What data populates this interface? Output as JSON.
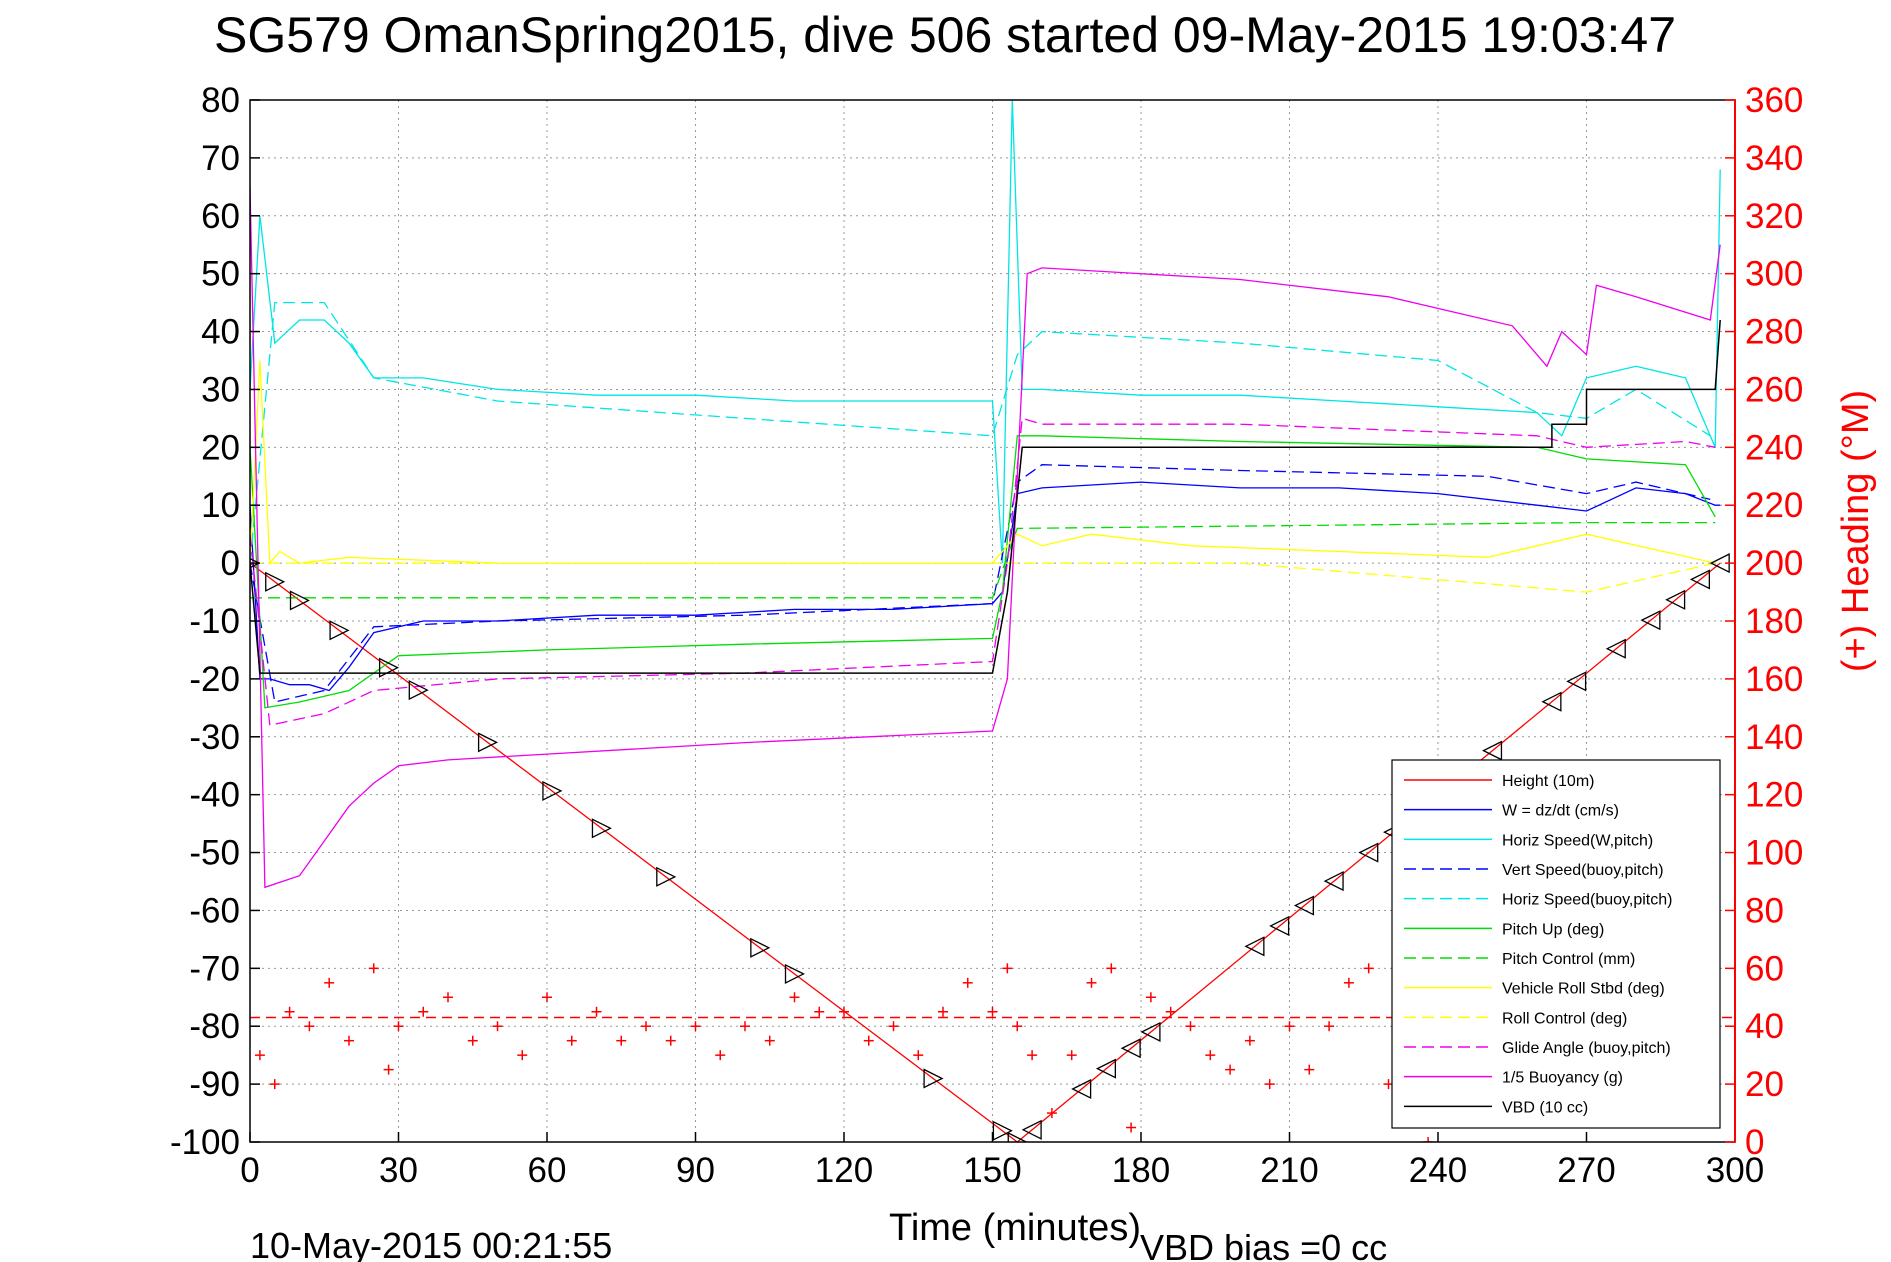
{
  "chart_data": {
    "type": "line",
    "title": "SG579 OmanSpring2015, dive 506 started 09-May-2015 19:03:47",
    "xlabel": "Time (minutes)",
    "ylabel": "",
    "y2label": "(+) Heading (°M)",
    "xlim": [
      0,
      300
    ],
    "ylim": [
      -100,
      80
    ],
    "y2lim": [
      0,
      360
    ],
    "xticks": [
      "0",
      "30",
      "60",
      "90",
      "120",
      "150",
      "180",
      "210",
      "240",
      "270",
      "300"
    ],
    "yticks": [
      "80",
      "70",
      "60",
      "50",
      "40",
      "30",
      "20",
      "10",
      "0",
      "-10",
      "-20",
      "-30",
      "-40",
      "-50",
      "-60",
      "-70",
      "-80",
      "-90",
      "-100"
    ],
    "y2ticks": [
      "360",
      "340",
      "320",
      "300",
      "280",
      "260",
      "240",
      "220",
      "200",
      "180",
      "160",
      "140",
      "120",
      "100",
      "80",
      "60",
      "40",
      "20",
      "0"
    ],
    "grid": true,
    "legend_position": "bottom-right",
    "footer_left": "10-May-2015 00:21:55",
    "footer_right": "VBD bias =0 cc",
    "series": [
      {
        "name": "Height (10m)",
        "color": "#ff0000",
        "style": "solid",
        "x": [
          0,
          155,
          297
        ],
        "y": [
          0,
          -100,
          0
        ]
      },
      {
        "name": "W = dz/dt (cm/s)",
        "color": "#0000ff",
        "style": "solid",
        "x": [
          0,
          2,
          4,
          8,
          12,
          16,
          20,
          25,
          35,
          50,
          70,
          90,
          110,
          130,
          150,
          152,
          155,
          160,
          180,
          200,
          220,
          240,
          260,
          270,
          280,
          290,
          296,
          297
        ],
        "y": [
          10,
          -20,
          -20,
          -21,
          -21,
          -22,
          -18,
          -12,
          -10,
          -10,
          -9,
          -9,
          -8,
          -8,
          -7,
          -5,
          12,
          13,
          14,
          13,
          13,
          12,
          10,
          9,
          13,
          12,
          10,
          10
        ]
      },
      {
        "name": "Horiz Speed(W,pitch)",
        "color": "#00e5e5",
        "style": "solid",
        "x": [
          0,
          2,
          5,
          10,
          15,
          20,
          25,
          35,
          50,
          70,
          90,
          110,
          130,
          150,
          152,
          154,
          156,
          160,
          180,
          200,
          220,
          240,
          260,
          265,
          270,
          280,
          290,
          296,
          297
        ],
        "y": [
          30,
          60,
          38,
          42,
          42,
          38,
          32,
          32,
          30,
          29,
          29,
          28,
          28,
          28,
          0,
          80,
          30,
          30,
          29,
          29,
          28,
          27,
          26,
          22,
          32,
          34,
          32,
          20,
          68
        ]
      },
      {
        "name": "Vert Speed(buoy,pitch)",
        "color": "#0000ff",
        "style": "dashed",
        "x": [
          0,
          5,
          15,
          25,
          50,
          100,
          150,
          155,
          160,
          200,
          250,
          270,
          280,
          295
        ],
        "y": [
          0,
          -24,
          -22,
          -11,
          -10,
          -9,
          -7,
          14,
          17,
          16,
          15,
          12,
          14,
          11
        ]
      },
      {
        "name": "Horiz Speed(buoy,pitch)",
        "color": "#00e5e5",
        "style": "dashed",
        "x": [
          0,
          5,
          15,
          25,
          50,
          100,
          150,
          155,
          160,
          200,
          240,
          260,
          270,
          280,
          295
        ],
        "y": [
          0,
          45,
          45,
          32,
          28,
          25,
          22,
          36,
          40,
          38,
          35,
          26,
          25,
          30,
          22
        ]
      },
      {
        "name": "Pitch Up (deg)",
        "color": "#00dd00",
        "style": "solid",
        "x": [
          0,
          3,
          10,
          20,
          30,
          60,
          100,
          150,
          152,
          155,
          160,
          200,
          260,
          270,
          290,
          296
        ],
        "y": [
          20,
          -25,
          -24,
          -22,
          -16,
          -15,
          -14,
          -13,
          -5,
          22,
          22,
          21,
          20,
          18,
          17,
          8
        ]
      },
      {
        "name": "Pitch Control (mm)",
        "color": "#00dd00",
        "style": "dashed",
        "x": [
          0,
          10,
          150,
          155,
          270,
          296
        ],
        "y": [
          -6,
          -6,
          -6,
          6,
          7,
          7
        ]
      },
      {
        "name": "Vehicle Roll Stbd (deg)",
        "color": "#ffff00",
        "style": "solid",
        "x": [
          0,
          2,
          4,
          6,
          10,
          20,
          50,
          100,
          150,
          155,
          160,
          170,
          190,
          220,
          250,
          270,
          296
        ],
        "y": [
          0,
          35,
          0,
          2,
          0,
          1,
          0,
          0,
          0,
          5,
          3,
          5,
          3,
          2,
          1,
          5,
          0
        ]
      },
      {
        "name": "Roll Control (deg)",
        "color": "#ffff00",
        "style": "dashed",
        "x": [
          0,
          5,
          150,
          155,
          200,
          270,
          296
        ],
        "y": [
          0,
          0,
          0,
          0,
          0,
          -5,
          0
        ]
      },
      {
        "name": "Glide Angle (buoy,pitch)",
        "color": "#ee00ee",
        "style": "dashed",
        "x": [
          0,
          4,
          15,
          25,
          50,
          100,
          150,
          153,
          156,
          160,
          200,
          260,
          270,
          290,
          296
        ],
        "y": [
          5,
          -28,
          -26,
          -22,
          -20,
          -19,
          -17,
          0,
          25,
          24,
          24,
          22,
          20,
          21,
          20
        ]
      },
      {
        "name": "1/5 Buoyancy (g)",
        "color": "#ee00ee",
        "style": "solid",
        "x": [
          0,
          3,
          10,
          15,
          20,
          25,
          30,
          40,
          60,
          100,
          150,
          153,
          157,
          160,
          200,
          230,
          255,
          262,
          265,
          270,
          272,
          280,
          295,
          297
        ],
        "y": [
          65,
          -56,
          -54,
          -48,
          -42,
          -38,
          -35,
          -34,
          -33,
          -31,
          -29,
          -20,
          50,
          51,
          49,
          46,
          41,
          34,
          40,
          36,
          48,
          46,
          42,
          55
        ]
      },
      {
        "name": "VBD (10 cc)",
        "color": "#000000",
        "style": "solid",
        "x": [
          0,
          2,
          3,
          150,
          153,
          156,
          263,
          263,
          270,
          270,
          296,
          297
        ],
        "y": [
          0,
          -19,
          -19,
          -19,
          -5,
          20,
          20,
          24,
          24,
          30,
          30,
          42
        ]
      }
    ],
    "heading": {
      "name": "(+) Heading (°M)",
      "color": "#ff0000",
      "mean": 43,
      "x": [
        2,
        5,
        8,
        12,
        16,
        20,
        25,
        28,
        30,
        35,
        40,
        45,
        50,
        55,
        60,
        65,
        70,
        75,
        80,
        85,
        90,
        95,
        100,
        105,
        110,
        115,
        120,
        125,
        130,
        135,
        140,
        145,
        150,
        153,
        155,
        158,
        162,
        166,
        170,
        174,
        178,
        182,
        186,
        190,
        194,
        198,
        202,
        206,
        210,
        214,
        218,
        222,
        226,
        230,
        234,
        238
      ],
      "y": [
        30,
        20,
        45,
        40,
        55,
        35,
        60,
        25,
        40,
        45,
        50,
        35,
        40,
        30,
        50,
        35,
        45,
        35,
        40,
        35,
        40,
        30,
        40,
        35,
        50,
        45,
        45,
        35,
        40,
        30,
        45,
        55,
        45,
        60,
        40,
        30,
        10,
        30,
        55,
        60,
        5,
        50,
        45,
        40,
        30,
        25,
        35,
        20,
        40,
        25,
        40,
        55,
        60,
        20,
        10,
        0
      ]
    }
  }
}
